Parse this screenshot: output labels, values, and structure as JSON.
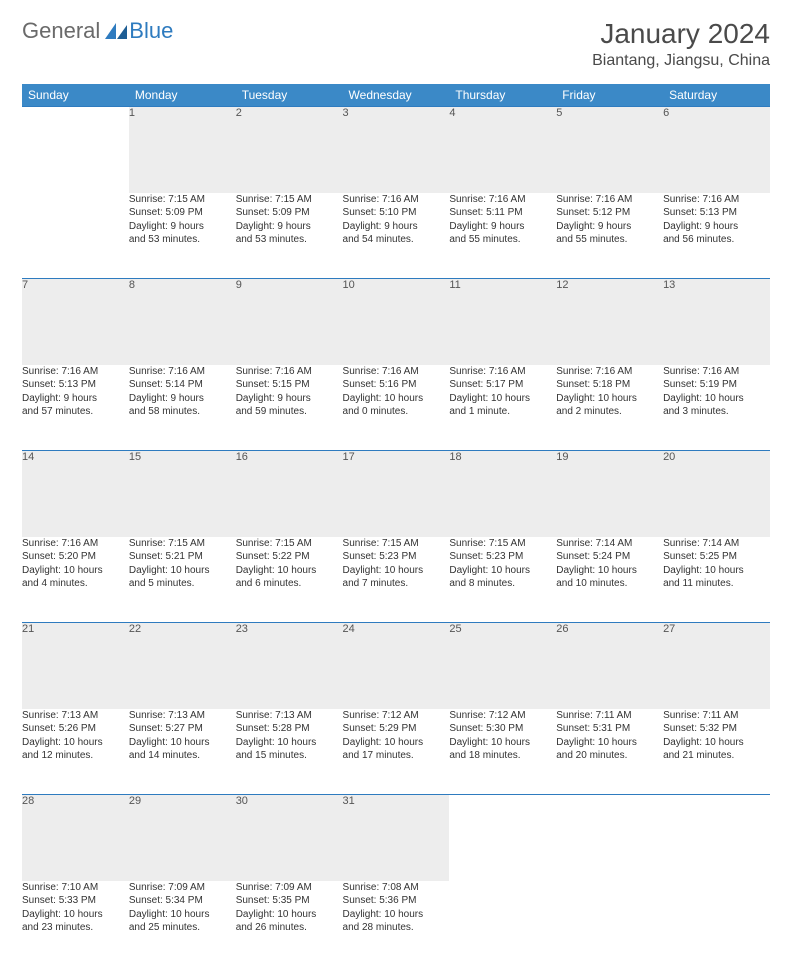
{
  "logo": {
    "text1": "General",
    "text2": "Blue"
  },
  "title": "January 2024",
  "location": "Biantang, Jiangsu, China",
  "colors": {
    "header_bg": "#3b89c7",
    "header_text": "#ffffff",
    "daynum_bg": "#ededed",
    "row_border": "#2e7bbf",
    "page_bg": "#ffffff",
    "body_text": "#333333",
    "logo_gray": "#6a6a6a",
    "logo_blue": "#2e7bbf"
  },
  "daysOfWeek": [
    "Sunday",
    "Monday",
    "Tuesday",
    "Wednesday",
    "Thursday",
    "Friday",
    "Saturday"
  ],
  "weeks": [
    [
      null,
      {
        "d": "1",
        "sr": "Sunrise: 7:15 AM",
        "ss": "Sunset: 5:09 PM",
        "dl1": "Daylight: 9 hours",
        "dl2": "and 53 minutes."
      },
      {
        "d": "2",
        "sr": "Sunrise: 7:15 AM",
        "ss": "Sunset: 5:09 PM",
        "dl1": "Daylight: 9 hours",
        "dl2": "and 53 minutes."
      },
      {
        "d": "3",
        "sr": "Sunrise: 7:16 AM",
        "ss": "Sunset: 5:10 PM",
        "dl1": "Daylight: 9 hours",
        "dl2": "and 54 minutes."
      },
      {
        "d": "4",
        "sr": "Sunrise: 7:16 AM",
        "ss": "Sunset: 5:11 PM",
        "dl1": "Daylight: 9 hours",
        "dl2": "and 55 minutes."
      },
      {
        "d": "5",
        "sr": "Sunrise: 7:16 AM",
        "ss": "Sunset: 5:12 PM",
        "dl1": "Daylight: 9 hours",
        "dl2": "and 55 minutes."
      },
      {
        "d": "6",
        "sr": "Sunrise: 7:16 AM",
        "ss": "Sunset: 5:13 PM",
        "dl1": "Daylight: 9 hours",
        "dl2": "and 56 minutes."
      }
    ],
    [
      {
        "d": "7",
        "sr": "Sunrise: 7:16 AM",
        "ss": "Sunset: 5:13 PM",
        "dl1": "Daylight: 9 hours",
        "dl2": "and 57 minutes."
      },
      {
        "d": "8",
        "sr": "Sunrise: 7:16 AM",
        "ss": "Sunset: 5:14 PM",
        "dl1": "Daylight: 9 hours",
        "dl2": "and 58 minutes."
      },
      {
        "d": "9",
        "sr": "Sunrise: 7:16 AM",
        "ss": "Sunset: 5:15 PM",
        "dl1": "Daylight: 9 hours",
        "dl2": "and 59 minutes."
      },
      {
        "d": "10",
        "sr": "Sunrise: 7:16 AM",
        "ss": "Sunset: 5:16 PM",
        "dl1": "Daylight: 10 hours",
        "dl2": "and 0 minutes."
      },
      {
        "d": "11",
        "sr": "Sunrise: 7:16 AM",
        "ss": "Sunset: 5:17 PM",
        "dl1": "Daylight: 10 hours",
        "dl2": "and 1 minute."
      },
      {
        "d": "12",
        "sr": "Sunrise: 7:16 AM",
        "ss": "Sunset: 5:18 PM",
        "dl1": "Daylight: 10 hours",
        "dl2": "and 2 minutes."
      },
      {
        "d": "13",
        "sr": "Sunrise: 7:16 AM",
        "ss": "Sunset: 5:19 PM",
        "dl1": "Daylight: 10 hours",
        "dl2": "and 3 minutes."
      }
    ],
    [
      {
        "d": "14",
        "sr": "Sunrise: 7:16 AM",
        "ss": "Sunset: 5:20 PM",
        "dl1": "Daylight: 10 hours",
        "dl2": "and 4 minutes."
      },
      {
        "d": "15",
        "sr": "Sunrise: 7:15 AM",
        "ss": "Sunset: 5:21 PM",
        "dl1": "Daylight: 10 hours",
        "dl2": "and 5 minutes."
      },
      {
        "d": "16",
        "sr": "Sunrise: 7:15 AM",
        "ss": "Sunset: 5:22 PM",
        "dl1": "Daylight: 10 hours",
        "dl2": "and 6 minutes."
      },
      {
        "d": "17",
        "sr": "Sunrise: 7:15 AM",
        "ss": "Sunset: 5:23 PM",
        "dl1": "Daylight: 10 hours",
        "dl2": "and 7 minutes."
      },
      {
        "d": "18",
        "sr": "Sunrise: 7:15 AM",
        "ss": "Sunset: 5:23 PM",
        "dl1": "Daylight: 10 hours",
        "dl2": "and 8 minutes."
      },
      {
        "d": "19",
        "sr": "Sunrise: 7:14 AM",
        "ss": "Sunset: 5:24 PM",
        "dl1": "Daylight: 10 hours",
        "dl2": "and 10 minutes."
      },
      {
        "d": "20",
        "sr": "Sunrise: 7:14 AM",
        "ss": "Sunset: 5:25 PM",
        "dl1": "Daylight: 10 hours",
        "dl2": "and 11 minutes."
      }
    ],
    [
      {
        "d": "21",
        "sr": "Sunrise: 7:13 AM",
        "ss": "Sunset: 5:26 PM",
        "dl1": "Daylight: 10 hours",
        "dl2": "and 12 minutes."
      },
      {
        "d": "22",
        "sr": "Sunrise: 7:13 AM",
        "ss": "Sunset: 5:27 PM",
        "dl1": "Daylight: 10 hours",
        "dl2": "and 14 minutes."
      },
      {
        "d": "23",
        "sr": "Sunrise: 7:13 AM",
        "ss": "Sunset: 5:28 PM",
        "dl1": "Daylight: 10 hours",
        "dl2": "and 15 minutes."
      },
      {
        "d": "24",
        "sr": "Sunrise: 7:12 AM",
        "ss": "Sunset: 5:29 PM",
        "dl1": "Daylight: 10 hours",
        "dl2": "and 17 minutes."
      },
      {
        "d": "25",
        "sr": "Sunrise: 7:12 AM",
        "ss": "Sunset: 5:30 PM",
        "dl1": "Daylight: 10 hours",
        "dl2": "and 18 minutes."
      },
      {
        "d": "26",
        "sr": "Sunrise: 7:11 AM",
        "ss": "Sunset: 5:31 PM",
        "dl1": "Daylight: 10 hours",
        "dl2": "and 20 minutes."
      },
      {
        "d": "27",
        "sr": "Sunrise: 7:11 AM",
        "ss": "Sunset: 5:32 PM",
        "dl1": "Daylight: 10 hours",
        "dl2": "and 21 minutes."
      }
    ],
    [
      {
        "d": "28",
        "sr": "Sunrise: 7:10 AM",
        "ss": "Sunset: 5:33 PM",
        "dl1": "Daylight: 10 hours",
        "dl2": "and 23 minutes."
      },
      {
        "d": "29",
        "sr": "Sunrise: 7:09 AM",
        "ss": "Sunset: 5:34 PM",
        "dl1": "Daylight: 10 hours",
        "dl2": "and 25 minutes."
      },
      {
        "d": "30",
        "sr": "Sunrise: 7:09 AM",
        "ss": "Sunset: 5:35 PM",
        "dl1": "Daylight: 10 hours",
        "dl2": "and 26 minutes."
      },
      {
        "d": "31",
        "sr": "Sunrise: 7:08 AM",
        "ss": "Sunset: 5:36 PM",
        "dl1": "Daylight: 10 hours",
        "dl2": "and 28 minutes."
      },
      null,
      null,
      null
    ]
  ]
}
